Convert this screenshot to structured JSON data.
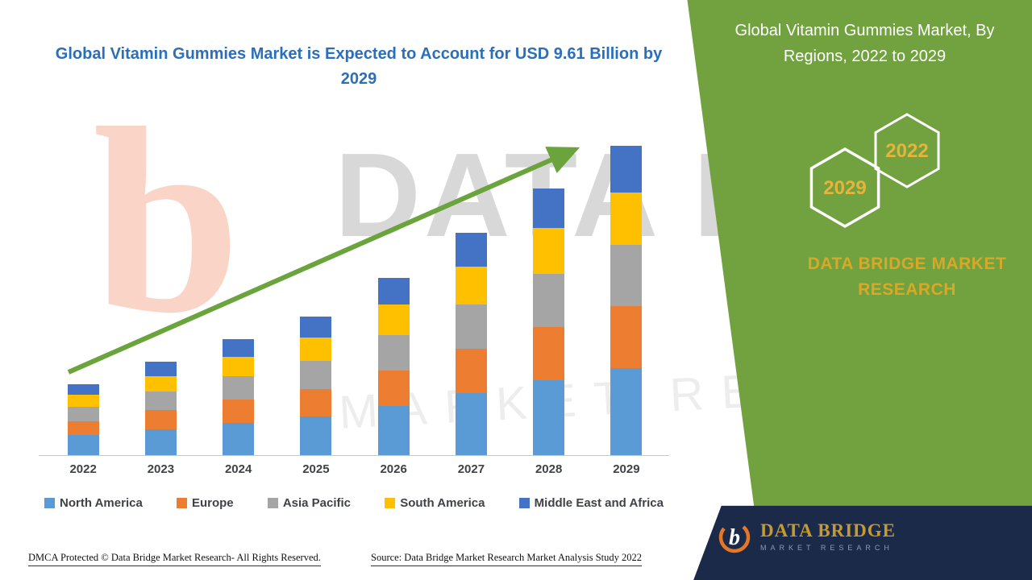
{
  "header": {
    "main_title": "Global Vitamin Gummies Market is Expected to Account for USD 9.61 Billion by 2029"
  },
  "side_panel": {
    "title": "Global Vitamin Gummies Market, By Regions, 2022 to 2029",
    "hex_front_label": "2029",
    "hex_back_label": "2022",
    "brand": "DATA BRIDGE MARKET RESEARCH",
    "panel_color": "#71A23F",
    "brand_color": "#D9A827",
    "hex_year_color": "#E5B43C"
  },
  "chart_data": {
    "type": "bar",
    "stacked": true,
    "title": "Global Vitamin Gummies Market is Expected to Account for USD 9.61 Billion by 2029",
    "unit": "USD Billion",
    "categories": [
      "2022",
      "2023",
      "2024",
      "2025",
      "2026",
      "2027",
      "2028",
      "2029"
    ],
    "series": [
      {
        "name": "North America",
        "color": "#5B9BD5",
        "values": [
          0.62,
          0.81,
          1.01,
          1.2,
          1.54,
          1.93,
          2.32,
          2.7
        ]
      },
      {
        "name": "Europe",
        "color": "#ED7D31",
        "values": [
          0.44,
          0.58,
          0.72,
          0.86,
          1.1,
          1.38,
          1.66,
          1.92
        ]
      },
      {
        "name": "Asia Pacific",
        "color": "#A5A5A5",
        "values": [
          0.44,
          0.58,
          0.72,
          0.86,
          1.1,
          1.38,
          1.66,
          1.92
        ]
      },
      {
        "name": "South America",
        "color": "#FFC000",
        "values": [
          0.37,
          0.49,
          0.61,
          0.73,
          0.94,
          1.17,
          1.41,
          1.63
        ]
      },
      {
        "name": "Middle East and Africa",
        "color": "#4472C4",
        "values": [
          0.33,
          0.44,
          0.54,
          0.65,
          0.83,
          1.04,
          1.25,
          1.44
        ]
      }
    ],
    "totals": [
      2.2,
      2.9,
      3.6,
      4.3,
      5.51,
      6.9,
      8.3,
      9.61
    ],
    "ylim": [
      0,
      9.61
    ],
    "xlabel": "",
    "ylabel": "",
    "gridlines": false,
    "legend_position": "bottom",
    "trend_arrow": true,
    "trend_arrow_color": "#6BA33C"
  },
  "footer": {
    "dmca": "DMCA Protected © Data Bridge Market Research- All Rights Reserved.",
    "source": "Source: Data Bridge Market Research Market Analysis Study 2022"
  },
  "logo": {
    "letter": "b",
    "wordmark": "DATA BRIDGE",
    "tagline": "MARKET RESEARCH"
  },
  "watermark": {
    "letter": "b",
    "brand": "DATA BRIDGE",
    "tagline": "MARKET RESEARCH"
  }
}
